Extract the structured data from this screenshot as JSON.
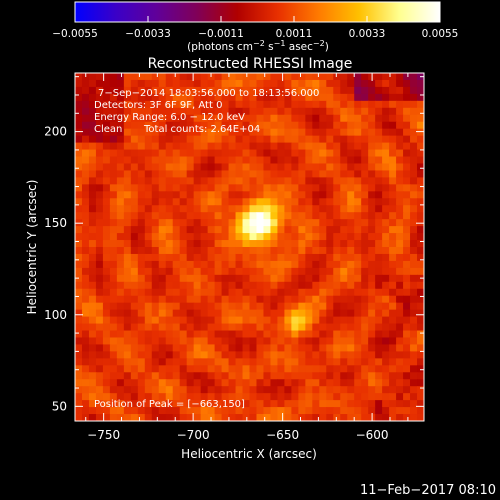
{
  "colorbar": {
    "ticks": [
      -0.0055,
      -0.0033,
      -0.0011,
      0.0011,
      0.0033,
      0.0055
    ],
    "tick_labels": [
      "−0.0055",
      "−0.0033",
      "−0.0011",
      "0.0011",
      "0.0033",
      "0.0055"
    ],
    "range": [
      -0.0055,
      0.0055
    ],
    "unit_prefix": "(photons cm",
    "unit_exp1": "−2",
    "unit_mid": " s",
    "unit_exp2": "−1",
    "unit_mid2": " asec",
    "unit_exp3": "−2",
    "unit_suffix": ")",
    "stops": [
      "#0000ff",
      "#3a00c8",
      "#60009a",
      "#800058",
      "#b00000",
      "#e83000",
      "#ff7a00",
      "#ffc000",
      "#ffff90",
      "#ffffff"
    ]
  },
  "chart_data": {
    "type": "heatmap",
    "title": "Reconstructed RHESSI Image",
    "xlabel": "Heliocentric X (arcsec)",
    "ylabel": "Heliocentric Y (arcsec)",
    "xlim": [
      -766,
      -571
    ],
    "ylim": [
      42,
      232
    ],
    "x_ticks": [
      -750,
      -700,
      -650,
      -600
    ],
    "x_tick_labels": [
      "−750",
      "−700",
      "−650",
      "−600"
    ],
    "y_ticks": [
      50,
      100,
      150,
      200
    ],
    "y_tick_labels": [
      "50",
      "100",
      "150",
      "200"
    ],
    "peak": {
      "x": -663,
      "y": 150
    },
    "sources": [
      {
        "x": -663,
        "y": 150,
        "intensity": 0.0055
      },
      {
        "x": -642,
        "y": 95,
        "intensity": 0.0035
      }
    ],
    "annotations": {
      "time": "7−Sep−2014 18:03:56.000 to 18:13:56.000",
      "detectors": "Detectors: 3F 6F 9F, Att 0",
      "energy": "Energy Range: 6.0 − 12.0 keV",
      "clean": "Clean",
      "counts": "Total counts: 2.64E+04",
      "peak_label": "Position of Peak = [−663,150]"
    }
  },
  "footer_timestamp": "11−Feb−2017 08:10"
}
